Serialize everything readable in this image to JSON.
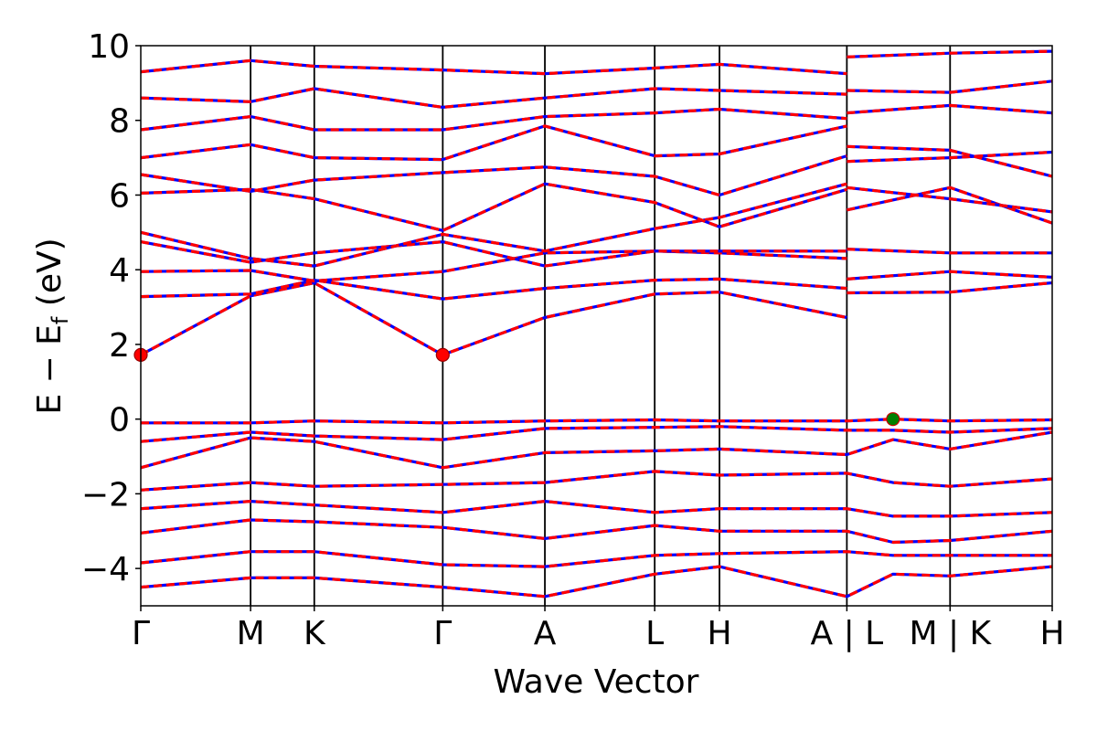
{
  "chart_data": {
    "type": "line",
    "title": "",
    "xlabel": "Wave Vector",
    "ylabel": "E − E",
    "ylabel_sub": "f",
    "ylabel_unit": " (eV)",
    "ylim": [
      -5,
      10
    ],
    "yticks": [
      10,
      8,
      6,
      4,
      2,
      0,
      -2,
      -4
    ],
    "ytick_labels": [
      "10",
      "8",
      "6",
      "4",
      "2",
      "0",
      "−2",
      "−4"
    ],
    "x_range": [
      0,
      8.3
    ],
    "kpoints": [
      {
        "label": "Γ",
        "x": 0.0
      },
      {
        "label": "M",
        "x": 1.0
      },
      {
        "label": "K",
        "x": 1.58
      },
      {
        "label": "Γ",
        "x": 2.75
      },
      {
        "label": "A",
        "x": 3.68
      },
      {
        "label": "L",
        "x": 4.68
      },
      {
        "label": "H",
        "x": 5.27
      },
      {
        "label": "A | L",
        "x": 6.43
      },
      {
        "label": "M | K",
        "x": 7.37
      },
      {
        "label": "H",
        "x": 8.3
      }
    ],
    "vertical_lines_x": [
      1.0,
      1.58,
      2.75,
      3.68,
      4.68,
      5.27,
      6.43,
      7.37
    ],
    "grid": false,
    "legend": "none",
    "series_colors": {
      "primary": "#ff0000",
      "overlay": "#0000ff"
    },
    "markers": [
      {
        "x": 0.0,
        "y": 1.72,
        "color": "#ff0000"
      },
      {
        "x": 2.75,
        "y": 1.72,
        "color": "#ff0000"
      },
      {
        "x": 6.85,
        "y": 0.0,
        "color": "#008000"
      }
    ],
    "bands": [
      {
        "x": [
          0,
          1.0,
          1.58,
          2.75,
          3.68,
          4.68,
          5.27,
          6.43
        ],
        "y": [
          1.72,
          3.3,
          3.65,
          1.72,
          2.72,
          3.35,
          3.4,
          2.72
        ]
      },
      {
        "x": [
          0,
          1.0,
          1.58,
          2.75,
          3.68,
          4.68,
          5.27,
          6.43
        ],
        "y": [
          3.28,
          3.35,
          3.72,
          3.22,
          3.5,
          3.72,
          3.75,
          3.5
        ]
      },
      {
        "x": [
          0,
          1.0,
          1.58,
          2.75,
          3.68,
          4.68,
          5.27,
          6.43
        ],
        "y": [
          3.95,
          3.98,
          3.7,
          3.95,
          4.45,
          4.5,
          4.45,
          4.3
        ]
      },
      {
        "x": [
          0,
          1.0,
          1.58,
          2.75,
          3.68,
          4.68,
          5.27,
          6.43
        ],
        "y": [
          4.75,
          4.2,
          4.45,
          4.75,
          4.1,
          4.5,
          4.5,
          4.5
        ]
      },
      {
        "x": [
          0,
          1.0,
          1.58,
          2.75,
          3.68,
          4.68,
          5.27,
          6.43
        ],
        "y": [
          5.0,
          4.3,
          4.1,
          4.95,
          4.5,
          5.1,
          5.4,
          6.3
        ]
      },
      {
        "x": [
          0,
          1.0,
          1.58,
          2.75,
          3.68,
          4.68,
          5.27,
          6.43
        ],
        "y": [
          6.05,
          6.15,
          5.9,
          5.05,
          6.3,
          5.8,
          5.15,
          6.15
        ]
      },
      {
        "x": [
          0,
          1.0,
          1.58,
          2.75,
          3.68,
          4.68,
          5.27,
          6.43
        ],
        "y": [
          6.55,
          6.1,
          6.4,
          6.6,
          6.75,
          6.5,
          6.0,
          7.05
        ]
      },
      {
        "x": [
          0,
          1.0,
          1.58,
          2.75,
          3.68,
          4.68,
          5.27,
          6.43
        ],
        "y": [
          7.0,
          7.35,
          7.0,
          6.95,
          7.85,
          7.05,
          7.1,
          7.85
        ]
      },
      {
        "x": [
          0,
          1.0,
          1.58,
          2.75,
          3.68,
          4.68,
          5.27,
          6.43
        ],
        "y": [
          7.75,
          8.1,
          7.75,
          7.75,
          8.1,
          8.2,
          8.3,
          8.05
        ]
      },
      {
        "x": [
          0,
          1.0,
          1.58,
          2.75,
          3.68,
          4.68,
          5.27,
          6.43
        ],
        "y": [
          8.6,
          8.5,
          8.85,
          8.35,
          8.6,
          8.85,
          8.8,
          8.7
        ]
      },
      {
        "x": [
          0,
          1.0,
          1.58,
          2.75,
          3.68,
          4.68,
          5.27,
          6.43
        ],
        "y": [
          9.3,
          9.6,
          9.45,
          9.35,
          9.25,
          9.4,
          9.5,
          9.25
        ]
      },
      {
        "x": [
          6.43,
          7.37,
          8.3
        ],
        "y": [
          3.38,
          3.4,
          3.65
        ]
      },
      {
        "x": [
          6.43,
          7.37,
          8.3
        ],
        "y": [
          3.75,
          3.95,
          3.8
        ]
      },
      {
        "x": [
          6.43,
          7.37,
          8.3
        ],
        "y": [
          4.55,
          4.45,
          4.45
        ]
      },
      {
        "x": [
          6.43,
          7.37,
          8.3
        ],
        "y": [
          5.6,
          6.2,
          5.25
        ]
      },
      {
        "x": [
          6.43,
          7.37,
          8.3
        ],
        "y": [
          6.2,
          5.9,
          5.55
        ]
      },
      {
        "x": [
          6.43,
          7.37,
          8.3
        ],
        "y": [
          6.9,
          7.0,
          7.15
        ]
      },
      {
        "x": [
          6.43,
          7.37,
          8.3
        ],
        "y": [
          7.3,
          7.2,
          6.5
        ]
      },
      {
        "x": [
          6.43,
          7.37,
          8.3
        ],
        "y": [
          8.2,
          8.4,
          8.2
        ]
      },
      {
        "x": [
          6.43,
          7.37,
          8.3
        ],
        "y": [
          8.8,
          8.75,
          9.05
        ]
      },
      {
        "x": [
          6.43,
          7.37,
          8.3
        ],
        "y": [
          9.7,
          9.8,
          9.85
        ]
      },
      {
        "x": [
          0,
          1.0,
          1.58,
          2.75,
          3.68,
          4.68,
          5.27,
          6.43,
          6.85,
          7.37,
          8.3
        ],
        "y": [
          -0.1,
          -0.1,
          -0.05,
          -0.1,
          -0.05,
          -0.02,
          -0.05,
          -0.05,
          0.0,
          -0.05,
          -0.02
        ]
      },
      {
        "x": [
          0,
          1.0,
          1.58,
          2.75,
          3.68,
          4.68,
          5.27,
          6.43,
          6.85,
          7.37,
          8.3
        ],
        "y": [
          -0.6,
          -0.35,
          -0.45,
          -0.55,
          -0.25,
          -0.22,
          -0.2,
          -0.3,
          -0.3,
          -0.35,
          -0.25
        ]
      },
      {
        "x": [
          0,
          1.0,
          1.58,
          2.75,
          3.68,
          4.68,
          5.27,
          6.43,
          6.85,
          7.37,
          8.3
        ],
        "y": [
          -1.3,
          -0.5,
          -0.6,
          -1.3,
          -0.9,
          -0.85,
          -0.8,
          -0.95,
          -0.55,
          -0.8,
          -0.35
        ]
      },
      {
        "x": [
          0,
          1.0,
          1.58,
          2.75,
          3.68,
          4.68,
          5.27,
          6.43,
          6.85,
          7.37,
          8.3
        ],
        "y": [
          -1.9,
          -1.7,
          -1.8,
          -1.75,
          -1.7,
          -1.4,
          -1.5,
          -1.45,
          -1.7,
          -1.8,
          -1.6
        ]
      },
      {
        "x": [
          0,
          1.0,
          1.58,
          2.75,
          3.68,
          4.68,
          5.27,
          6.43,
          6.85,
          7.37,
          8.3
        ],
        "y": [
          -2.4,
          -2.2,
          -2.3,
          -2.5,
          -2.2,
          -2.5,
          -2.4,
          -2.4,
          -2.6,
          -2.6,
          -2.5
        ]
      },
      {
        "x": [
          0,
          1.0,
          1.58,
          2.75,
          3.68,
          4.68,
          5.27,
          6.43,
          6.85,
          7.37,
          8.3
        ],
        "y": [
          -3.05,
          -2.7,
          -2.75,
          -2.9,
          -3.2,
          -2.85,
          -3.0,
          -3.0,
          -3.3,
          -3.25,
          -3.0
        ]
      },
      {
        "x": [
          0,
          1.0,
          1.58,
          2.75,
          3.68,
          4.68,
          5.27,
          6.43,
          6.85,
          7.37,
          8.3
        ],
        "y": [
          -3.85,
          -3.55,
          -3.55,
          -3.9,
          -3.95,
          -3.65,
          -3.6,
          -3.55,
          -3.65,
          -3.65,
          -3.65
        ]
      },
      {
        "x": [
          0,
          1.0,
          1.58,
          2.75,
          3.68,
          4.68,
          5.27,
          6.43,
          6.85,
          7.37,
          8.3
        ],
        "y": [
          -4.5,
          -4.25,
          -4.25,
          -4.5,
          -4.75,
          -4.15,
          -3.95,
          -4.75,
          -4.15,
          -4.2,
          -3.95
        ]
      }
    ]
  }
}
